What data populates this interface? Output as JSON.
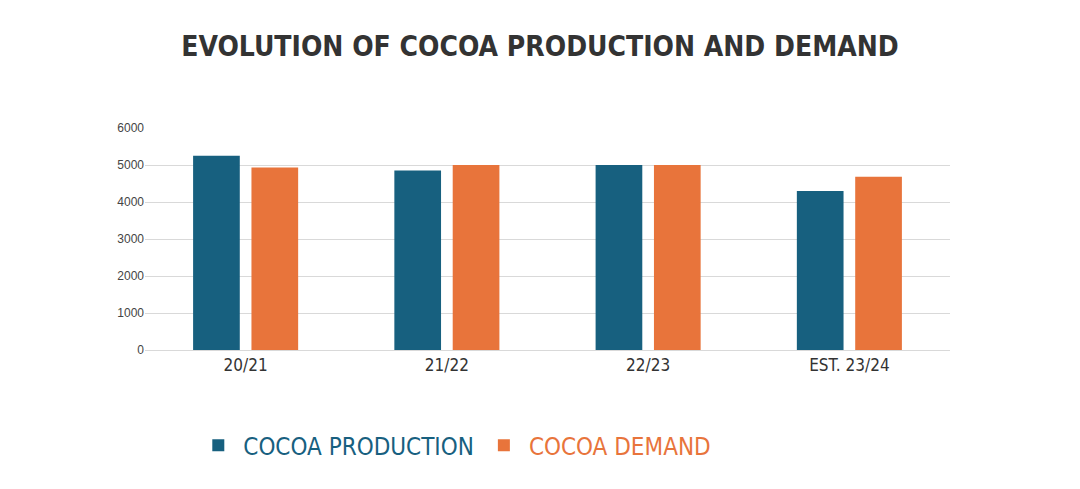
{
  "chart_data": {
    "type": "bar",
    "title": "EVOLUTION OF COCOA PRODUCTION AND DEMAND",
    "categories": [
      "20/21",
      "21/22",
      "22/23",
      "EST. 23/24"
    ],
    "series": [
      {
        "name": "COCOA PRODUCTION",
        "color": "#17607f",
        "values": [
          5250,
          4850,
          5000,
          4300
        ]
      },
      {
        "name": "COCOA DEMAND",
        "color": "#e8743b",
        "values": [
          4930,
          5000,
          5000,
          4680
        ]
      }
    ],
    "ylim": [
      0,
      6000
    ],
    "yticks": [
      0,
      1000,
      2000,
      3000,
      4000,
      5000,
      6000
    ],
    "grid": true,
    "legend": "bottom"
  }
}
